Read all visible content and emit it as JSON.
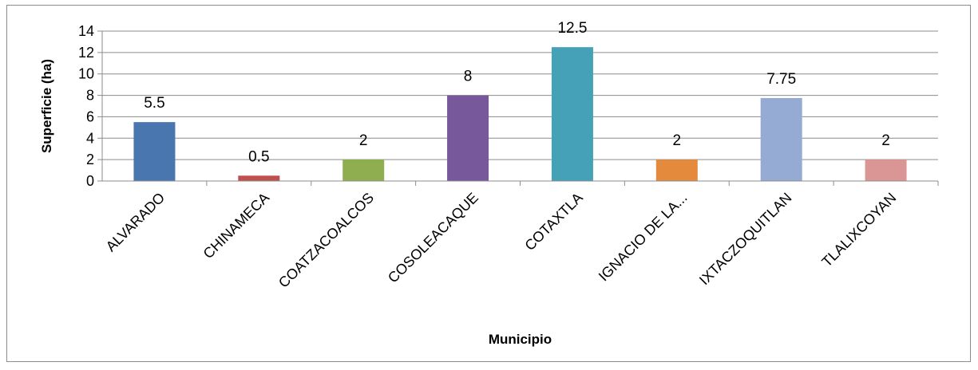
{
  "chart_data": {
    "type": "bar",
    "categories": [
      "ALVARADO",
      "CHINAMECA",
      "COATZACOALCOS",
      "COSOLEACAQUE",
      "COTAXTLA",
      "IGNACIO DE LA...",
      "IXTACZOQUITLAN",
      "TLALIXCOYAN"
    ],
    "values": [
      5.5,
      0.5,
      2,
      8,
      12.5,
      2,
      7.75,
      2
    ],
    "data_labels": [
      "5.5",
      "0.5",
      "2",
      "8",
      "12.5",
      "2",
      "7.75",
      "2"
    ],
    "colors": [
      "#4a76b0",
      "#c0504d",
      "#8fae4f",
      "#76589b",
      "#45a1b8",
      "#e38a3c",
      "#96abd4",
      "#d99694"
    ],
    "xlabel": "Municipio",
    "ylabel": "Superficie (ha)",
    "ylim": [
      0,
      14
    ],
    "yticks": [
      0,
      2,
      4,
      6,
      8,
      10,
      12,
      14
    ],
    "grid": true,
    "legend": "none"
  }
}
